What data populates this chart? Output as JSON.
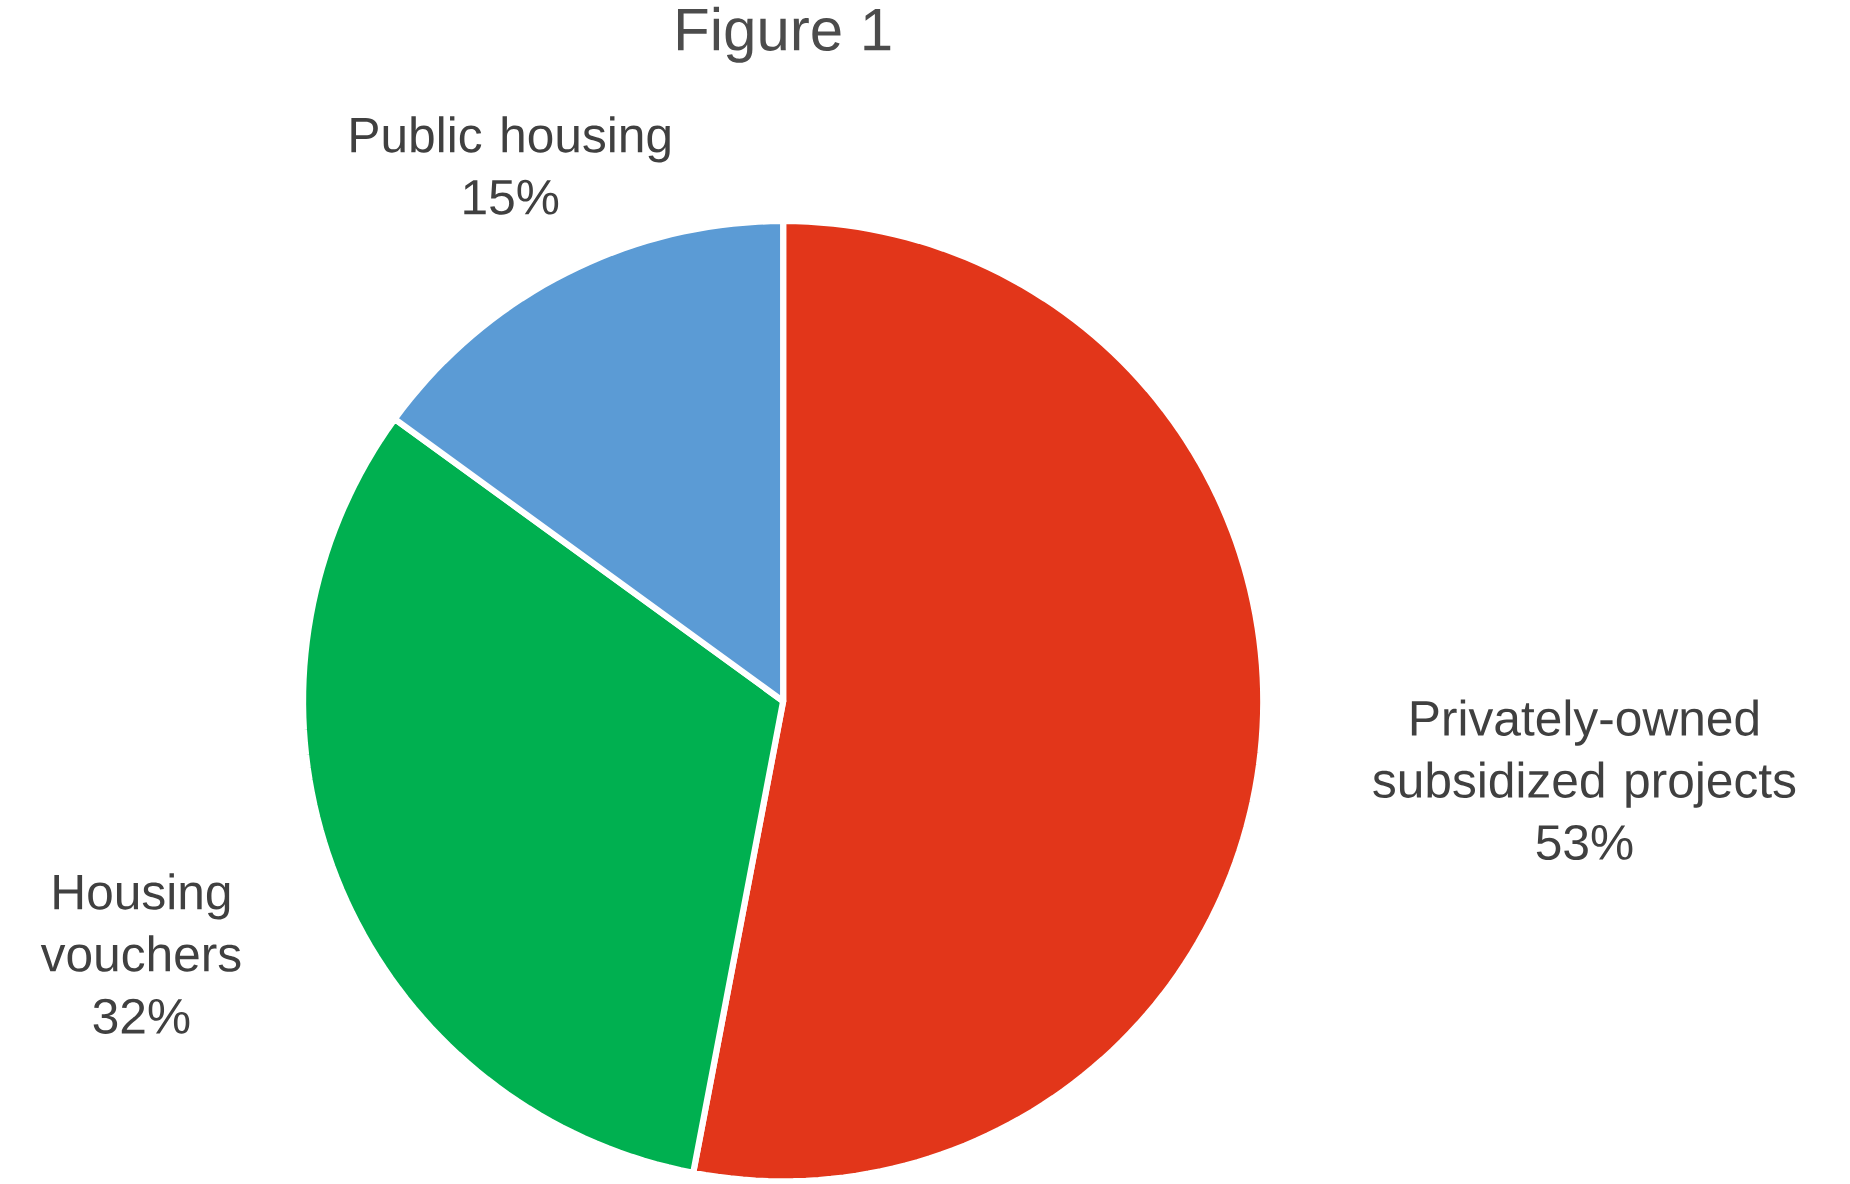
{
  "chart_data": {
    "type": "pie",
    "title": "Figure 1",
    "categories": [
      "Privately-owned subsidized projects",
      "Housing vouchers",
      "Public housing"
    ],
    "values": [
      53,
      32,
      15
    ],
    "value_labels": [
      "53%",
      "32%",
      "15%"
    ],
    "colors": [
      "#e2361a",
      "#00b050",
      "#5b9bd5"
    ]
  }
}
